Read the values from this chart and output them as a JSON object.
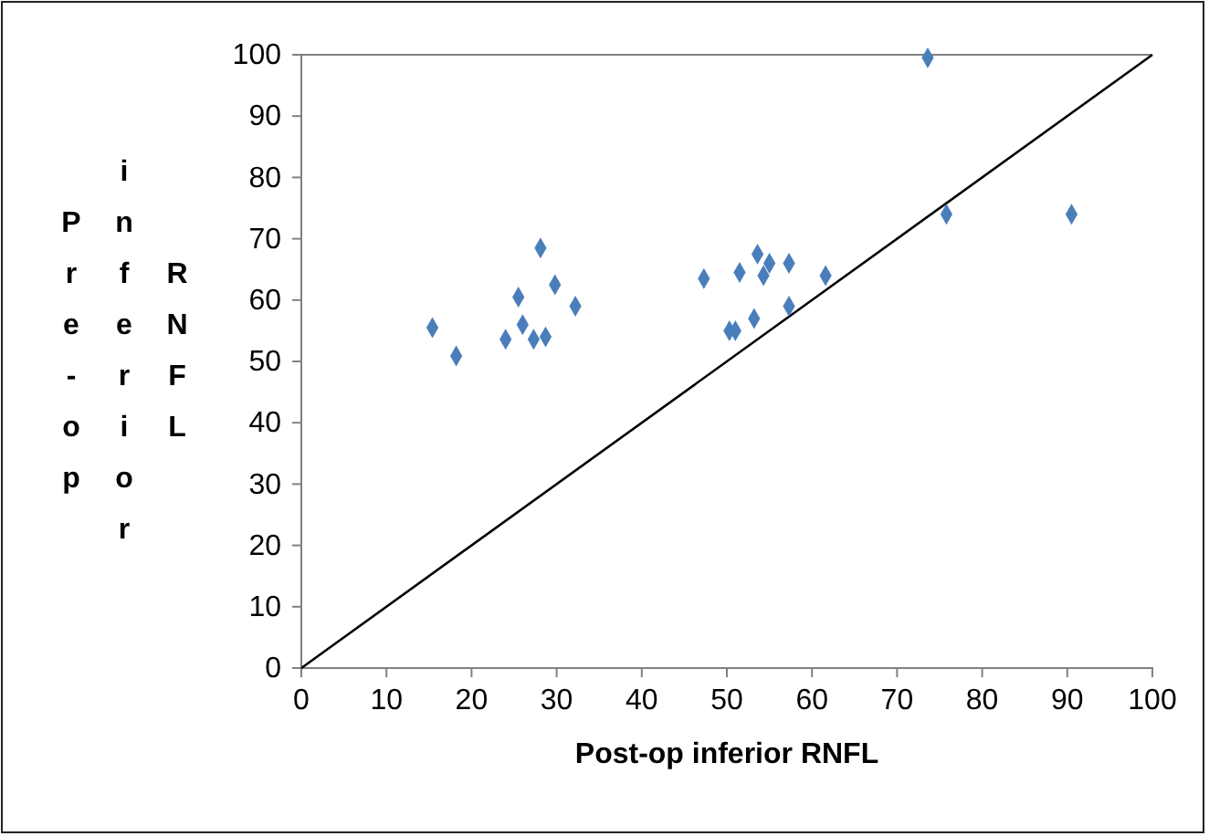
{
  "chart_data": {
    "type": "scatter",
    "xlabel": "Post-op inferior RNFL",
    "ylabel": "Pre-op inferior RNFL",
    "xlim": [
      0,
      100
    ],
    "ylim": [
      0,
      100
    ],
    "xticks": [
      0,
      10,
      20,
      30,
      40,
      50,
      60,
      70,
      80,
      90,
      100
    ],
    "yticks": [
      0,
      10,
      20,
      30,
      40,
      50,
      60,
      70,
      80,
      90,
      100
    ],
    "grid": false,
    "marker": "diamond",
    "ref_lines": [
      {
        "axis": "y",
        "value": 100,
        "color": "#808080"
      }
    ],
    "series": [
      {
        "color": "#4a7ebb",
        "x": [
          15.4,
          18.2,
          24,
          25.5,
          26,
          27.3,
          28.1,
          28.7,
          29.8,
          32.2,
          47.3,
          50.3,
          51,
          51.5,
          53.2,
          53.6,
          54.3,
          55,
          57.3,
          57.3,
          61.6,
          73.6,
          75.8,
          90.5
        ],
        "values": [
          55.5,
          50.9,
          53.6,
          60.5,
          56,
          53.6,
          68.5,
          54,
          62.5,
          59,
          63.5,
          55,
          55,
          64.5,
          57,
          67.5,
          64,
          66,
          66,
          59,
          64,
          99.5,
          74,
          74
        ]
      },
      {
        "type": "line",
        "marker": "none",
        "color": "#000000",
        "x": [
          0,
          100
        ],
        "values": [
          0,
          100
        ]
      }
    ]
  }
}
